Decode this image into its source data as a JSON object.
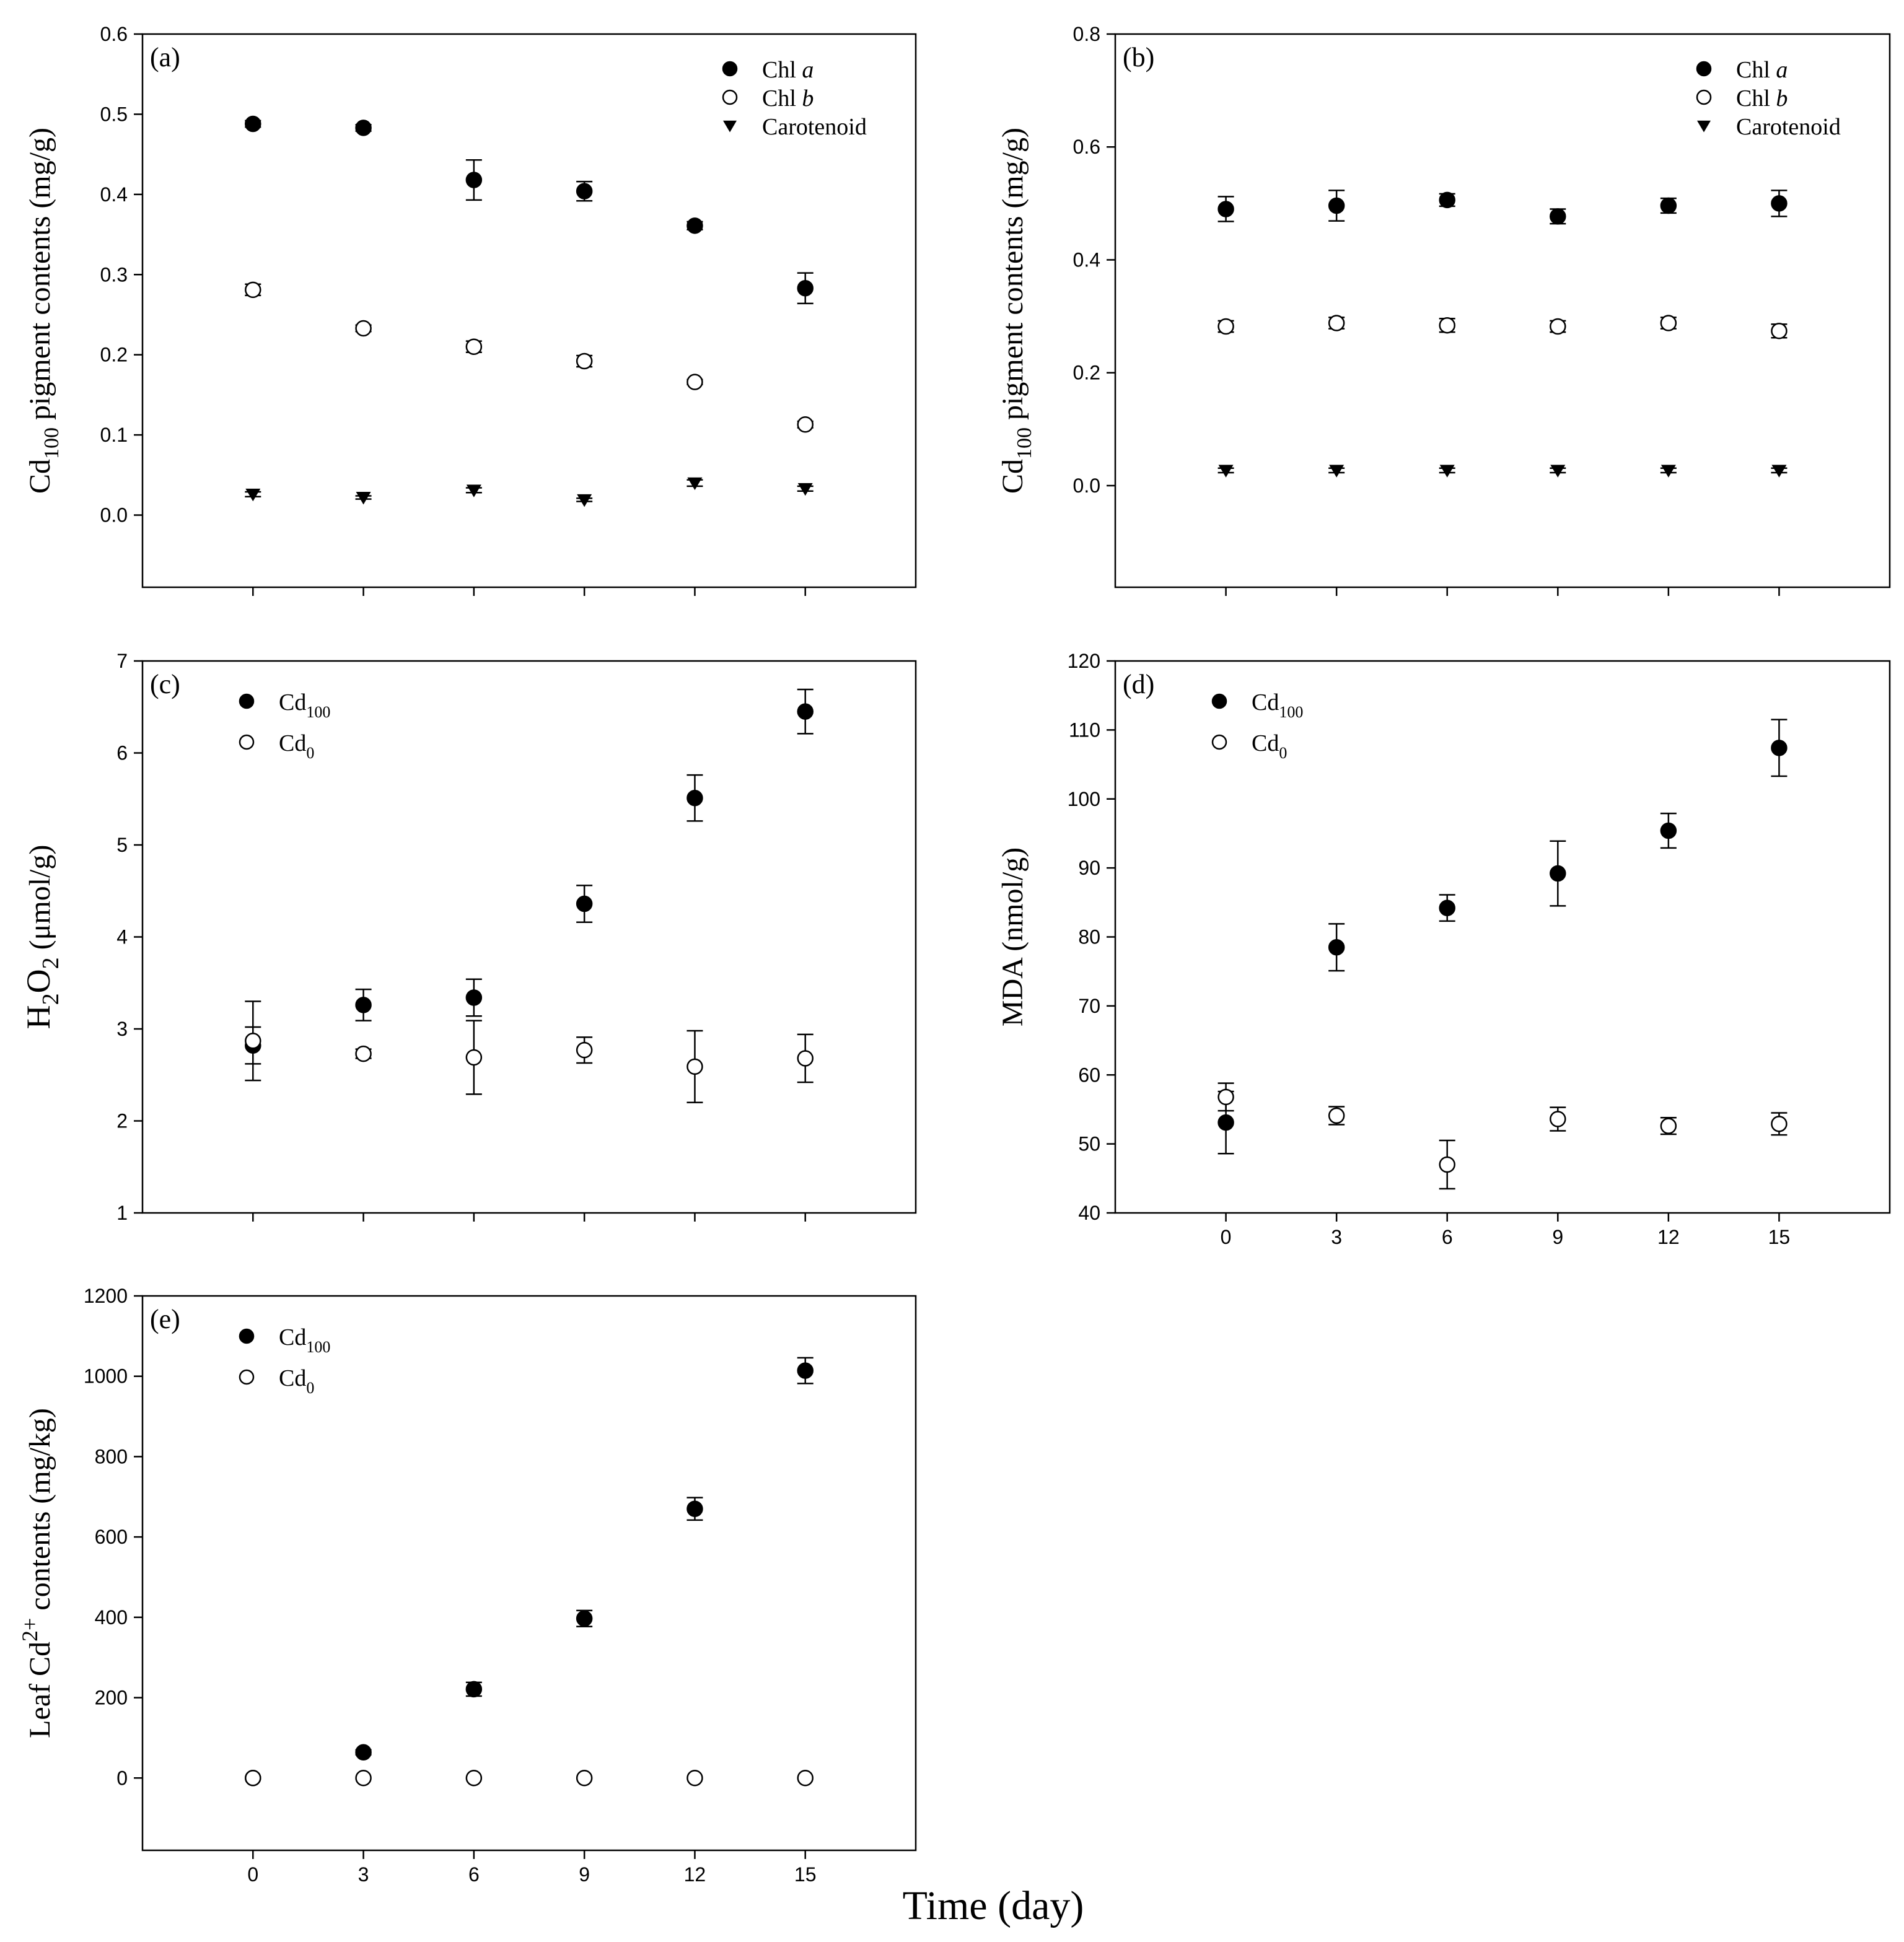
{
  "figure": {
    "x_axis_title": "Time (day)"
  },
  "chart_data": [
    {
      "id": "a",
      "type": "scatter",
      "panel_label": "(a)",
      "ylabel": {
        "main": "Cd",
        "sub": "100",
        "rest": " pigment contents (mg/g)"
      },
      "x": [
        0,
        3,
        6,
        9,
        12,
        15
      ],
      "xlim": [
        -3,
        18
      ],
      "show_xticklabels": false,
      "ylim": [
        -0.09,
        0.6
      ],
      "yticks": [
        0.0,
        0.1,
        0.2,
        0.3,
        0.4,
        0.5,
        0.6
      ],
      "ytick_labels": [
        "0.0",
        "0.1",
        "0.2",
        "0.3",
        "0.4",
        "0.5",
        "0.6"
      ],
      "legend_position": "top-right",
      "series": [
        {
          "name": "Chl a",
          "label_main": "Chl ",
          "label_italic": "a",
          "marker": "filled-circle",
          "values": [
            0.488,
            0.483,
            0.418,
            0.404,
            0.361,
            0.283
          ],
          "errors": [
            0.004,
            0.004,
            0.025,
            0.012,
            0.005,
            0.019
          ]
        },
        {
          "name": "Chl b",
          "label_main": "Chl ",
          "label_italic": "b",
          "marker": "open-circle",
          "values": [
            0.281,
            0.233,
            0.21,
            0.192,
            0.166,
            0.113
          ],
          "errors": [
            0.007,
            0.004,
            0.007,
            0.007,
            0.003,
            0.004
          ]
        },
        {
          "name": "Carotenoid",
          "label_main": "Carotenoid",
          "label_italic": "",
          "marker": "filled-triangle-down",
          "values": [
            0.026,
            0.022,
            0.031,
            0.019,
            0.04,
            0.033
          ],
          "errors": [
            0.003,
            0.002,
            0.003,
            0.002,
            0.004,
            0.003
          ]
        }
      ]
    },
    {
      "id": "b",
      "type": "scatter",
      "panel_label": "(b)",
      "ylabel": {
        "main": "Cd",
        "sub": "100",
        "rest": " pigment contents (mg/g)"
      },
      "x": [
        0,
        3,
        6,
        9,
        12,
        15
      ],
      "xlim": [
        -3,
        18
      ],
      "show_xticklabels": false,
      "ylim": [
        -0.18,
        0.8
      ],
      "yticks": [
        0.0,
        0.2,
        0.4,
        0.6,
        0.8
      ],
      "ytick_labels": [
        "0.0",
        "0.2",
        "0.4",
        "0.6",
        "0.8"
      ],
      "legend_position": "top-right",
      "series": [
        {
          "name": "Chl a",
          "label_main": "Chl ",
          "label_italic": "a",
          "marker": "filled-circle",
          "values": [
            0.49,
            0.496,
            0.506,
            0.477,
            0.496,
            0.5
          ],
          "errors": [
            0.022,
            0.027,
            0.011,
            0.013,
            0.013,
            0.023
          ]
        },
        {
          "name": "Chl b",
          "label_main": "Chl ",
          "label_italic": "b",
          "marker": "open-circle",
          "values": [
            0.282,
            0.288,
            0.284,
            0.282,
            0.288,
            0.274
          ],
          "errors": [
            0.01,
            0.01,
            0.012,
            0.01,
            0.01,
            0.012
          ]
        },
        {
          "name": "Carotenoid",
          "label_main": "Carotenoid",
          "label_italic": "",
          "marker": "filled-triangle-down",
          "values": [
            0.027,
            0.027,
            0.027,
            0.027,
            0.027,
            0.027
          ],
          "errors": [
            0.004,
            0.004,
            0.004,
            0.004,
            0.004,
            0.004
          ]
        }
      ]
    },
    {
      "id": "c",
      "type": "scatter",
      "panel_label": "(c)",
      "ylabel": {
        "type": "h2o2",
        "text": "H2O2 (μmol/g)",
        "tail": " (μmol/g)"
      },
      "x": [
        0,
        3,
        6,
        9,
        12,
        15
      ],
      "xlim": [
        -3,
        18
      ],
      "show_xticklabels": false,
      "ylim": [
        1,
        7
      ],
      "yticks": [
        1,
        2,
        3,
        4,
        5,
        6,
        7
      ],
      "ytick_labels": [
        "1",
        "2",
        "3",
        "4",
        "5",
        "6",
        "7"
      ],
      "legend_position": "top-left",
      "series": [
        {
          "name": "Cd100",
          "label_main": "Cd",
          "label_sub": "100",
          "marker": "filled-circle",
          "values": [
            2.82,
            3.26,
            3.34,
            4.36,
            5.51,
            6.45
          ],
          "errors": [
            0.2,
            0.17,
            0.2,
            0.2,
            0.25,
            0.24
          ]
        },
        {
          "name": "Cd0",
          "label_main": "Cd",
          "label_sub": "0",
          "marker": "open-circle",
          "values": [
            2.87,
            2.73,
            2.69,
            2.77,
            2.59,
            2.68
          ],
          "errors": [
            0.43,
            0.05,
            0.4,
            0.14,
            0.39,
            0.26
          ]
        }
      ]
    },
    {
      "id": "d",
      "type": "scatter",
      "panel_label": "(d)",
      "ylabel": {
        "main": "MDA (nmol/g)"
      },
      "x": [
        0,
        3,
        6,
        9,
        12,
        15
      ],
      "xlim": [
        -3,
        18
      ],
      "show_xticklabels": true,
      "xtick_labels": [
        "0",
        "3",
        "6",
        "9",
        "12",
        "15"
      ],
      "ylim": [
        40,
        120
      ],
      "yticks": [
        40,
        50,
        60,
        70,
        80,
        90,
        100,
        110,
        120
      ],
      "ytick_labels": [
        "40",
        "50",
        "60",
        "70",
        "80",
        "90",
        "100",
        "110",
        "120"
      ],
      "legend_position": "top-left",
      "series": [
        {
          "name": "Cd100",
          "label_main": "Cd",
          "label_sub": "100",
          "marker": "filled-circle",
          "values": [
            53.1,
            78.5,
            84.2,
            89.2,
            95.4,
            107.4
          ],
          "errors": [
            4.5,
            3.4,
            1.9,
            4.7,
            2.5,
            4.1
          ]
        },
        {
          "name": "Cd0",
          "label_main": "Cd",
          "label_sub": "0",
          "marker": "open-circle",
          "values": [
            56.8,
            54.1,
            47.0,
            53.6,
            52.6,
            52.9
          ],
          "errors": [
            2.0,
            1.3,
            3.5,
            1.7,
            1.2,
            1.6
          ]
        }
      ]
    },
    {
      "id": "e",
      "type": "scatter",
      "panel_label": "(e)",
      "ylabel": {
        "type": "leaf",
        "text": "Leaf Cd2+ contents (mg/kg)",
        "pre": "Leaf Cd",
        "sup": "2+",
        "post": " contents (mg/kg)"
      },
      "x": [
        0,
        3,
        6,
        9,
        12,
        15
      ],
      "xlim": [
        -3,
        18
      ],
      "show_xticklabels": true,
      "xtick_labels": [
        "0",
        "3",
        "6",
        "9",
        "12",
        "15"
      ],
      "ylim": [
        -180,
        1200
      ],
      "yticks": [
        0,
        200,
        400,
        600,
        800,
        1000,
        1200
      ],
      "ytick_labels": [
        "0",
        "200",
        "400",
        "600",
        "800",
        "1000",
        "1200"
      ],
      "legend_position": "top-left",
      "series": [
        {
          "name": "Cd100",
          "label_main": "Cd",
          "label_sub": "100",
          "marker": "filled-circle",
          "values": [
            0,
            64,
            221,
            397,
            670,
            1014
          ],
          "errors": [
            0,
            6,
            17,
            20,
            28,
            32
          ]
        },
        {
          "name": "Cd0",
          "label_main": "Cd",
          "label_sub": "0",
          "marker": "open-circle",
          "values": [
            0,
            0,
            0,
            0,
            0,
            0
          ],
          "errors": [
            0,
            0,
            0,
            0,
            0,
            0
          ]
        }
      ]
    }
  ]
}
